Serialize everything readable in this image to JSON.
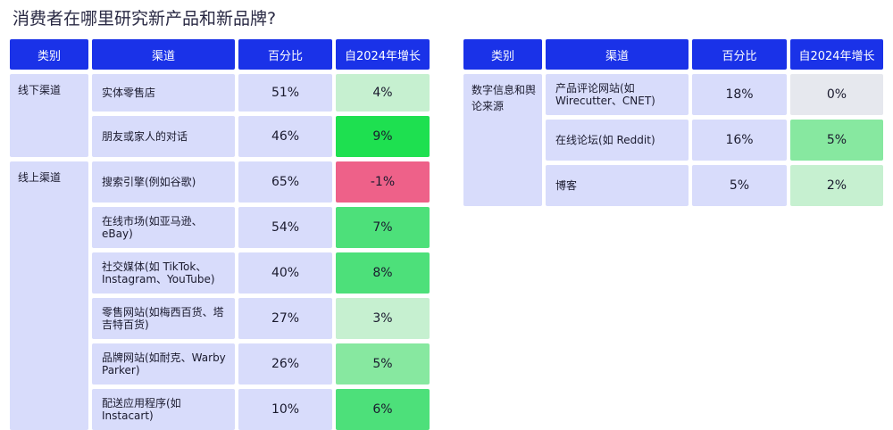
{
  "title": "消费者在哪里研究新产品和新品牌?",
  "chart_data": {
    "type": "table",
    "colors": {
      "header": "#1a32e8",
      "cell": "#d8dcfb",
      "growth_negative": "#ee6189",
      "growth_zero": "#e6e8ee",
      "growth_low": "#c6f0d0",
      "growth_mid": "#87e8a0",
      "growth_high": "#4de07a",
      "growth_top": "#1ee050"
    },
    "tables": [
      {
        "headers": [
          "类别",
          "渠道",
          "百分比",
          "自2024年增长"
        ],
        "groups": [
          {
            "category": "线下渠道",
            "rows": [
              {
                "channel": "实体零售店",
                "percent": "51%",
                "growth": "4%",
                "growth_value": 4
              },
              {
                "channel": "朋友或家人的对话",
                "percent": "46%",
                "growth": "9%",
                "growth_value": 9
              }
            ]
          },
          {
            "category": "线上渠道",
            "rows": [
              {
                "channel": "搜索引擎(例如谷歌)",
                "percent": "65%",
                "growth": "-1%",
                "growth_value": -1
              },
              {
                "channel": "在线市场(如亚马逊、eBay)",
                "percent": "54%",
                "growth": "7%",
                "growth_value": 7
              },
              {
                "channel": "社交媒体(如 TikTok、Instagram、YouTube)",
                "percent": "40%",
                "growth": "8%",
                "growth_value": 8
              },
              {
                "channel": "零售网站(如梅西百货、塔吉特百货)",
                "percent": "27%",
                "growth": "3%",
                "growth_value": 3
              },
              {
                "channel": "品牌网站(如耐克、Warby Parker)",
                "percent": "26%",
                "growth": "5%",
                "growth_value": 5
              },
              {
                "channel": "配送应用程序(如 Instacart)",
                "percent": "10%",
                "growth": "6%",
                "growth_value": 6
              }
            ]
          }
        ]
      },
      {
        "headers": [
          "类别",
          "渠道",
          "百分比",
          "自2024年增长"
        ],
        "groups": [
          {
            "category": "数字信息和舆论来源",
            "rows": [
              {
                "channel": "产品评论网站(如 Wirecutter、CNET)",
                "percent": "18%",
                "growth": "0%",
                "growth_value": 0
              },
              {
                "channel": "在线论坛(如 Reddit)",
                "percent": "16%",
                "growth": "5%",
                "growth_value": 5
              },
              {
                "channel": "博客",
                "percent": "5%",
                "growth": "2%",
                "growth_value": 2
              }
            ]
          }
        ]
      }
    ]
  }
}
